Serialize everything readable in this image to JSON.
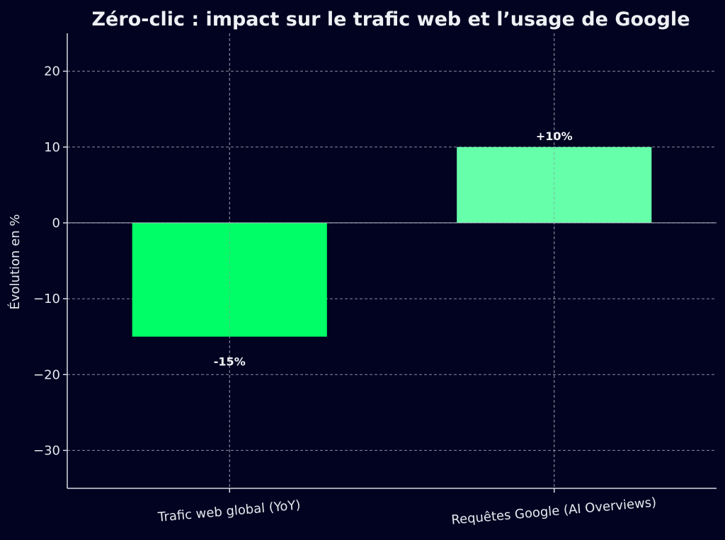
{
  "chart_data": {
    "type": "bar",
    "title": "Zéro-clic : impact sur le trafic web et l’usage de Google",
    "xlabel": "",
    "ylabel": "Évolution en %",
    "categories": [
      "Trafic web global (YoY)",
      "Requêtes Google (AI Overviews)"
    ],
    "values": [
      -15,
      10
    ],
    "data_labels": [
      "-15%",
      "+10%"
    ],
    "bar_colors": [
      "#00ff66",
      "#66ffaa"
    ],
    "ylim": [
      -35,
      25
    ],
    "yticks": [
      20,
      10,
      0,
      -10,
      -20,
      -30
    ],
    "ytick_labels": [
      "20",
      "10",
      "0",
      "−10",
      "−20",
      "−30"
    ],
    "grid": true,
    "legend": "none",
    "colors": {
      "background": "#020321",
      "text": "#e6e8ee",
      "grid": "#8a8d9c",
      "axis": "#d8dae2"
    }
  }
}
